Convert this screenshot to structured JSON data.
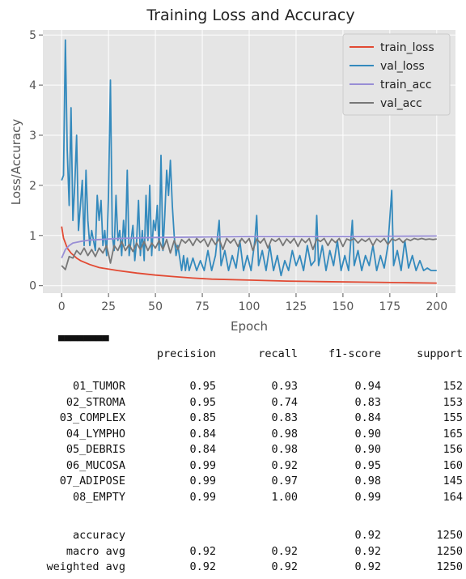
{
  "chart_data": {
    "type": "line",
    "title": "Training Loss and Accuracy",
    "xlabel": "Epoch",
    "ylabel": "Loss/Accuracy",
    "xlim": [
      -10,
      210
    ],
    "ylim": [
      -0.15,
      5.1
    ],
    "xticks": [
      "0",
      "25",
      "50",
      "75",
      "100",
      "125",
      "150",
      "175",
      "200"
    ],
    "xtick_values": [
      0,
      25,
      50,
      75,
      100,
      125,
      150,
      175,
      200
    ],
    "yticks": [
      "0",
      "1",
      "2",
      "3",
      "4",
      "5"
    ],
    "ytick_values": [
      0,
      1,
      2,
      3,
      4,
      5
    ],
    "grid": true,
    "legend_position": "top-right",
    "series": [
      {
        "name": "train_loss",
        "color": "#e24a33",
        "points": [
          [
            0,
            1.18
          ],
          [
            1,
            0.95
          ],
          [
            2,
            0.85
          ],
          [
            3,
            0.75
          ],
          [
            5,
            0.65
          ],
          [
            8,
            0.55
          ],
          [
            10,
            0.5
          ],
          [
            15,
            0.42
          ],
          [
            20,
            0.36
          ],
          [
            30,
            0.3
          ],
          [
            40,
            0.25
          ],
          [
            50,
            0.21
          ],
          [
            60,
            0.18
          ],
          [
            70,
            0.15
          ],
          [
            80,
            0.13
          ],
          [
            100,
            0.11
          ],
          [
            120,
            0.09
          ],
          [
            140,
            0.08
          ],
          [
            160,
            0.07
          ],
          [
            180,
            0.06
          ],
          [
            200,
            0.05
          ]
        ]
      },
      {
        "name": "val_loss",
        "color": "#348abd",
        "points": [
          [
            0,
            2.1
          ],
          [
            1,
            2.2
          ],
          [
            2,
            4.9
          ],
          [
            3,
            2.7
          ],
          [
            4,
            1.6
          ],
          [
            5,
            3.55
          ],
          [
            6,
            1.3
          ],
          [
            7,
            2.0
          ],
          [
            8,
            3.0
          ],
          [
            9,
            1.1
          ],
          [
            10,
            1.6
          ],
          [
            11,
            2.1
          ],
          [
            12,
            0.8
          ],
          [
            13,
            2.3
          ],
          [
            14,
            1.3
          ],
          [
            15,
            0.8
          ],
          [
            16,
            1.1
          ],
          [
            17,
            0.9
          ],
          [
            18,
            0.7
          ],
          [
            19,
            1.8
          ],
          [
            20,
            1.3
          ],
          [
            21,
            1.7
          ],
          [
            22,
            0.8
          ],
          [
            23,
            1.1
          ],
          [
            24,
            0.6
          ],
          [
            25,
            1.8
          ],
          [
            26,
            4.1
          ],
          [
            27,
            1.0
          ],
          [
            28,
            0.7
          ],
          [
            29,
            1.8
          ],
          [
            30,
            0.9
          ],
          [
            31,
            1.1
          ],
          [
            32,
            0.6
          ],
          [
            33,
            1.3
          ],
          [
            34,
            0.8
          ],
          [
            35,
            2.3
          ],
          [
            36,
            0.6
          ],
          [
            37,
            0.9
          ],
          [
            38,
            1.2
          ],
          [
            39,
            0.5
          ],
          [
            40,
            0.9
          ],
          [
            41,
            1.7
          ],
          [
            42,
            0.6
          ],
          [
            43,
            1.1
          ],
          [
            44,
            0.5
          ],
          [
            45,
            1.8
          ],
          [
            46,
            0.9
          ],
          [
            47,
            2.0
          ],
          [
            48,
            0.6
          ],
          [
            49,
            1.3
          ],
          [
            50,
            1.1
          ],
          [
            51,
            1.6
          ],
          [
            52,
            0.7
          ],
          [
            53,
            2.6
          ],
          [
            54,
            0.7
          ],
          [
            55,
            1.4
          ],
          [
            56,
            2.3
          ],
          [
            57,
            1.8
          ],
          [
            58,
            2.5
          ],
          [
            59,
            1.6
          ],
          [
            60,
            1.0
          ],
          [
            61,
            0.6
          ],
          [
            62,
            0.8
          ],
          [
            63,
            0.55
          ],
          [
            64,
            0.3
          ],
          [
            65,
            0.6
          ],
          [
            66,
            0.3
          ],
          [
            67,
            0.55
          ],
          [
            68,
            0.3
          ],
          [
            70,
            0.55
          ],
          [
            72,
            0.3
          ],
          [
            74,
            0.5
          ],
          [
            76,
            0.3
          ],
          [
            78,
            0.7
          ],
          [
            80,
            0.3
          ],
          [
            82,
            0.6
          ],
          [
            84,
            1.3
          ],
          [
            85,
            0.4
          ],
          [
            87,
            0.7
          ],
          [
            89,
            0.3
          ],
          [
            91,
            0.6
          ],
          [
            93,
            0.35
          ],
          [
            95,
            0.9
          ],
          [
            97,
            0.3
          ],
          [
            99,
            0.6
          ],
          [
            101,
            0.3
          ],
          [
            103,
            0.9
          ],
          [
            104,
            1.4
          ],
          [
            105,
            0.4
          ],
          [
            107,
            0.7
          ],
          [
            109,
            0.3
          ],
          [
            111,
            0.8
          ],
          [
            113,
            0.3
          ],
          [
            115,
            0.6
          ],
          [
            117,
            0.2
          ],
          [
            119,
            0.5
          ],
          [
            121,
            0.3
          ],
          [
            123,
            0.7
          ],
          [
            125,
            0.4
          ],
          [
            127,
            0.6
          ],
          [
            129,
            0.3
          ],
          [
            131,
            0.8
          ],
          [
            133,
            0.4
          ],
          [
            135,
            0.5
          ],
          [
            136,
            1.4
          ],
          [
            137,
            0.4
          ],
          [
            139,
            0.8
          ],
          [
            141,
            0.3
          ],
          [
            143,
            0.7
          ],
          [
            145,
            0.4
          ],
          [
            147,
            0.9
          ],
          [
            149,
            0.3
          ],
          [
            151,
            0.6
          ],
          [
            153,
            0.3
          ],
          [
            155,
            1.3
          ],
          [
            156,
            0.4
          ],
          [
            158,
            0.7
          ],
          [
            160,
            0.3
          ],
          [
            162,
            0.6
          ],
          [
            164,
            0.4
          ],
          [
            166,
            0.8
          ],
          [
            168,
            0.3
          ],
          [
            170,
            0.6
          ],
          [
            172,
            0.35
          ],
          [
            174,
            0.8
          ],
          [
            176,
            1.9
          ],
          [
            177,
            0.4
          ],
          [
            179,
            0.7
          ],
          [
            181,
            0.3
          ],
          [
            183,
            0.9
          ],
          [
            185,
            0.35
          ],
          [
            187,
            0.6
          ],
          [
            189,
            0.3
          ],
          [
            191,
            0.5
          ],
          [
            193,
            0.3
          ],
          [
            195,
            0.35
          ],
          [
            197,
            0.3
          ],
          [
            200,
            0.3
          ]
        ]
      },
      {
        "name": "train_acc",
        "color": "#988ed5",
        "points": [
          [
            0,
            0.55
          ],
          [
            2,
            0.72
          ],
          [
            4,
            0.8
          ],
          [
            6,
            0.85
          ],
          [
            10,
            0.88
          ],
          [
            15,
            0.91
          ],
          [
            20,
            0.92
          ],
          [
            30,
            0.94
          ],
          [
            50,
            0.96
          ],
          [
            75,
            0.97
          ],
          [
            100,
            0.98
          ],
          [
            150,
            0.98
          ],
          [
            200,
            0.99
          ]
        ]
      },
      {
        "name": "val_acc",
        "color": "#777777",
        "points": [
          [
            0,
            0.4
          ],
          [
            2,
            0.32
          ],
          [
            4,
            0.58
          ],
          [
            6,
            0.55
          ],
          [
            8,
            0.7
          ],
          [
            10,
            0.62
          ],
          [
            12,
            0.75
          ],
          [
            14,
            0.6
          ],
          [
            16,
            0.72
          ],
          [
            18,
            0.58
          ],
          [
            20,
            0.75
          ],
          [
            22,
            0.65
          ],
          [
            24,
            0.8
          ],
          [
            26,
            0.45
          ],
          [
            28,
            0.8
          ],
          [
            30,
            0.7
          ],
          [
            32,
            0.88
          ],
          [
            34,
            0.7
          ],
          [
            36,
            0.82
          ],
          [
            38,
            0.68
          ],
          [
            40,
            0.85
          ],
          [
            42,
            0.72
          ],
          [
            44,
            0.88
          ],
          [
            46,
            0.7
          ],
          [
            48,
            0.85
          ],
          [
            50,
            0.75
          ],
          [
            52,
            0.9
          ],
          [
            54,
            0.72
          ],
          [
            56,
            0.92
          ],
          [
            58,
            0.65
          ],
          [
            60,
            0.9
          ],
          [
            62,
            0.72
          ],
          [
            64,
            0.92
          ],
          [
            66,
            0.85
          ],
          [
            68,
            0.93
          ],
          [
            70,
            0.8
          ],
          [
            72,
            0.94
          ],
          [
            74,
            0.86
          ],
          [
            76,
            0.93
          ],
          [
            78,
            0.78
          ],
          [
            80,
            0.94
          ],
          [
            82,
            0.82
          ],
          [
            84,
            0.93
          ],
          [
            86,
            0.72
          ],
          [
            88,
            0.94
          ],
          [
            90,
            0.85
          ],
          [
            92,
            0.93
          ],
          [
            94,
            0.78
          ],
          [
            96,
            0.94
          ],
          [
            98,
            0.85
          ],
          [
            100,
            0.94
          ],
          [
            102,
            0.7
          ],
          [
            104,
            0.93
          ],
          [
            106,
            0.85
          ],
          [
            108,
            0.94
          ],
          [
            110,
            0.75
          ],
          [
            112,
            0.93
          ],
          [
            114,
            0.88
          ],
          [
            116,
            0.94
          ],
          [
            118,
            0.8
          ],
          [
            120,
            0.93
          ],
          [
            122,
            0.85
          ],
          [
            124,
            0.94
          ],
          [
            126,
            0.78
          ],
          [
            128,
            0.93
          ],
          [
            130,
            0.86
          ],
          [
            132,
            0.94
          ],
          [
            134,
            0.72
          ],
          [
            136,
            0.93
          ],
          [
            138,
            0.88
          ],
          [
            140,
            0.94
          ],
          [
            142,
            0.8
          ],
          [
            144,
            0.93
          ],
          [
            146,
            0.86
          ],
          [
            148,
            0.94
          ],
          [
            150,
            0.78
          ],
          [
            152,
            0.93
          ],
          [
            154,
            0.9
          ],
          [
            156,
            0.94
          ],
          [
            158,
            0.85
          ],
          [
            160,
            0.93
          ],
          [
            162,
            0.88
          ],
          [
            164,
            0.94
          ],
          [
            166,
            0.8
          ],
          [
            168,
            0.93
          ],
          [
            170,
            0.87
          ],
          [
            172,
            0.94
          ],
          [
            174,
            0.82
          ],
          [
            176,
            0.93
          ],
          [
            178,
            0.9
          ],
          [
            180,
            0.94
          ],
          [
            182,
            0.86
          ],
          [
            184,
            0.93
          ],
          [
            186,
            0.9
          ],
          [
            188,
            0.94
          ],
          [
            190,
            0.92
          ],
          [
            192,
            0.94
          ],
          [
            194,
            0.92
          ],
          [
            196,
            0.93
          ],
          [
            198,
            0.92
          ],
          [
            200,
            0.93
          ]
        ]
      }
    ]
  },
  "report": {
    "headers": [
      "precision",
      "recall",
      "f1-score",
      "support"
    ],
    "rows": [
      [
        "01_TUMOR",
        "0.95",
        "0.93",
        "0.94",
        "152"
      ],
      [
        "02_STROMA",
        "0.95",
        "0.74",
        "0.83",
        "153"
      ],
      [
        "03_COMPLEX",
        "0.85",
        "0.83",
        "0.84",
        "155"
      ],
      [
        "04_LYMPHO",
        "0.84",
        "0.98",
        "0.90",
        "165"
      ],
      [
        "05_DEBRIS",
        "0.84",
        "0.98",
        "0.90",
        "156"
      ],
      [
        "06_MUCOSA",
        "0.99",
        "0.92",
        "0.95",
        "160"
      ],
      [
        "07_ADIPOSE",
        "0.99",
        "0.97",
        "0.98",
        "145"
      ],
      [
        "08_EMPTY",
        "0.99",
        "1.00",
        "0.99",
        "164"
      ]
    ],
    "summary": [
      [
        "accuracy",
        "",
        "",
        "0.92",
        "1250"
      ],
      [
        "macro avg",
        "0.92",
        "0.92",
        "0.92",
        "1250"
      ],
      [
        "weighted avg",
        "0.92",
        "0.92",
        "0.92",
        "1250"
      ]
    ]
  }
}
